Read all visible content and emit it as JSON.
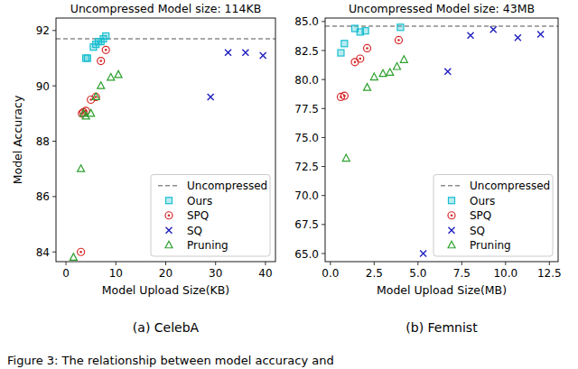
{
  "chart_data": [
    {
      "type": "scatter",
      "title": "Uncompressed Model size: 114KB",
      "x_label": "Model Upload Size(KB)",
      "y_label": "Model Accuracy",
      "caption": "(a) CelebA",
      "xlim": [
        -2,
        42
      ],
      "xticks": [
        0,
        10,
        20,
        30,
        40
      ],
      "ylim": [
        83.65,
        92.45
      ],
      "yticks": [
        84,
        86,
        88,
        90,
        92
      ],
      "legend": "lower right",
      "series": [
        {
          "name": "Uncompressed",
          "type": "hline",
          "color": "#8c8c8c",
          "line_style": "dashed",
          "values": [
            91.7
          ]
        },
        {
          "name": "Ours",
          "color": "#17becf",
          "marker": "square",
          "x": [
            4,
            4.3,
            5.5,
            6,
            6.5,
            7,
            7.5,
            8
          ],
          "values": [
            91.0,
            91.0,
            91.4,
            91.5,
            91.6,
            91.6,
            91.7,
            91.8
          ]
        },
        {
          "name": "SPQ",
          "color": "#d62728",
          "marker": "circle",
          "x": [
            3,
            3.2,
            3.5,
            4,
            5,
            6,
            7,
            8
          ],
          "values": [
            84.0,
            89.0,
            89.05,
            89.1,
            89.5,
            89.6,
            90.9,
            91.3
          ]
        },
        {
          "name": "SQ",
          "color": "#1f1fbf",
          "marker": "x",
          "x": [
            29,
            32.5,
            36,
            39.5
          ],
          "values": [
            89.6,
            91.2,
            91.2,
            91.1
          ]
        },
        {
          "name": "Pruning",
          "color": "#2ca02c",
          "marker": "triangle",
          "x": [
            1.5,
            3,
            3.5,
            4,
            5,
            6,
            7,
            9,
            10.5
          ],
          "values": [
            83.8,
            87.0,
            89.0,
            88.9,
            89.0,
            89.6,
            90.0,
            90.3,
            90.4
          ]
        }
      ]
    },
    {
      "type": "scatter",
      "title": "Uncompressed Model size: 43MB",
      "x_label": "Model Upload Size(MB)",
      "caption": "(b) Femnist",
      "xlim": [
        -0.3,
        13.0
      ],
      "xticks": [
        {
          "value": 0,
          "label": "0.0"
        },
        2.5,
        {
          "value": 5,
          "label": "5.0"
        },
        7.5,
        {
          "value": 10,
          "label": "10.0"
        },
        12.5
      ],
      "ylim": [
        64.3,
        85.3
      ],
      "yticks": [
        {
          "value": 65,
          "label": "65.0"
        },
        67.5,
        {
          "value": 70,
          "label": "70.0"
        },
        72.5,
        {
          "value": 75,
          "label": "75.0"
        },
        77.5,
        {
          "value": 80,
          "label": "80.0"
        },
        82.5,
        {
          "value": 85,
          "label": "85.0"
        }
      ],
      "legend": "lower right",
      "series": [
        {
          "name": "Uncompressed",
          "type": "hline",
          "color": "#8c8c8c",
          "line_style": "dashed",
          "values": [
            84.6
          ]
        },
        {
          "name": "Ours",
          "color": "#17becf",
          "marker": "square",
          "x": [
            0.6,
            0.8,
            1.4,
            1.7,
            2.0,
            4.0
          ],
          "values": [
            82.3,
            83.1,
            84.4,
            84.1,
            84.2,
            84.5
          ]
        },
        {
          "name": "SPQ",
          "color": "#d62728",
          "marker": "circle",
          "x": [
            0.6,
            0.8,
            1.4,
            1.7,
            2.1,
            3.9
          ],
          "values": [
            78.5,
            78.6,
            81.5,
            81.8,
            82.7,
            83.4
          ]
        },
        {
          "name": "SQ",
          "color": "#1f1fbf",
          "marker": "x",
          "x": [
            5.3,
            6.7,
            8.0,
            9.3,
            10.7,
            12.0
          ],
          "values": [
            65.0,
            80.7,
            83.8,
            84.3,
            83.6,
            83.9
          ]
        },
        {
          "name": "Pruning",
          "color": "#2ca02c",
          "marker": "triangle",
          "x": [
            0.9,
            2.1,
            2.5,
            3.0,
            3.4,
            3.8,
            4.2
          ],
          "values": [
            73.2,
            79.3,
            80.2,
            80.5,
            80.6,
            81.1,
            81.7
          ]
        }
      ]
    }
  ],
  "figure_caption": "Figure 3:  The relationship between model accuracy and"
}
